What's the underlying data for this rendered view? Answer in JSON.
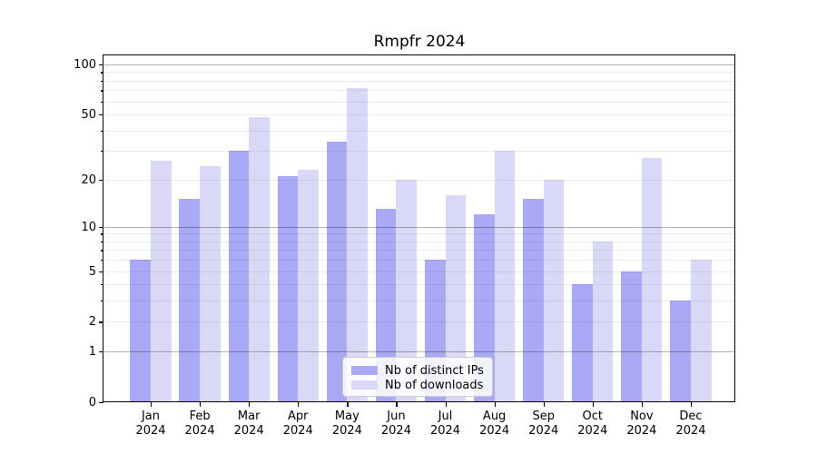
{
  "title": "Rmpfr 2024",
  "chart_data": {
    "type": "bar",
    "title": "Rmpfr 2024",
    "x_tick_months": [
      "Jan",
      "Feb",
      "Mar",
      "Apr",
      "May",
      "Jun",
      "Jul",
      "Aug",
      "Sep",
      "Oct",
      "Nov",
      "Dec"
    ],
    "x_tick_year": "2024",
    "series": [
      {
        "name": "Nb of distinct IPs",
        "color": "#a9a9f5",
        "values": [
          6,
          15,
          30,
          21,
          34,
          13,
          6,
          12,
          15,
          4,
          5,
          3
        ]
      },
      {
        "name": "Nb of downloads",
        "color": "#d9d9f7",
        "values": [
          26,
          24,
          48,
          23,
          72,
          20,
          16,
          30,
          20,
          8,
          27,
          6
        ]
      }
    ],
    "yscale": "log1p",
    "ylim": [
      0,
      114
    ],
    "y_tick_labels": [
      100,
      50,
      20,
      10,
      5,
      2,
      1,
      0
    ],
    "y_major_gridlines": [
      1,
      10,
      100
    ],
    "y_minor_gridlines": [
      2,
      3,
      4,
      5,
      6,
      7,
      8,
      9,
      20,
      30,
      40,
      50,
      60,
      70,
      80,
      90
    ],
    "grid": true,
    "legend_position": "lower center",
    "colors": {
      "major_grid": "#b0b0b0",
      "minor_grid": "#ebebeb",
      "axis": "#000000"
    }
  }
}
